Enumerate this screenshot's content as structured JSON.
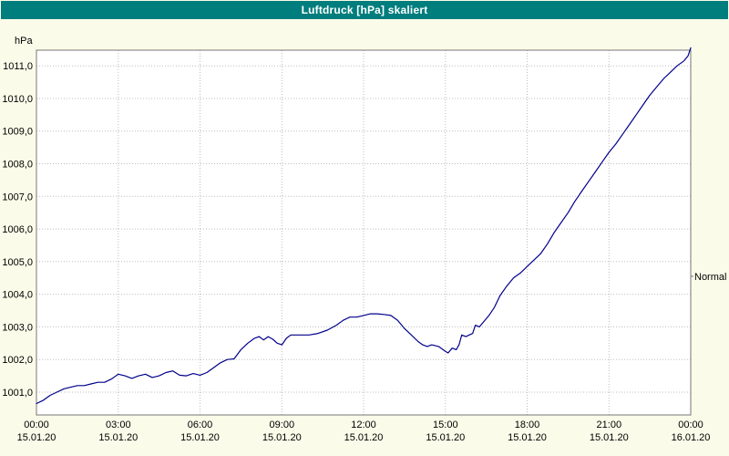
{
  "window": {
    "title": "Luftdruck [hPa] skaliert"
  },
  "colors": {
    "titlebar_bg": "#007d7d",
    "titlebar_text": "#ffffff",
    "page_bg": "#fbfbe9",
    "plot_bg": "#ffffff",
    "grid": "#bdbdbd",
    "axis": "#777777",
    "line": "#00008b",
    "text": "#000000"
  },
  "chart_data": {
    "type": "line",
    "title": "Luftdruck [hPa] skaliert",
    "ylabel": "hPa",
    "xlabel": "",
    "grid": true,
    "legend": "none",
    "ylim": [
      1000.3,
      1011.48
    ],
    "xlim": [
      0,
      24
    ],
    "yticks": [
      1001,
      1002,
      1003,
      1004,
      1005,
      1006,
      1007,
      1008,
      1009,
      1010,
      1011
    ],
    "ytick_labels": [
      "1001,0",
      "1002,0",
      "1003,0",
      "1004,0",
      "1005,0",
      "1006,0",
      "1007,0",
      "1008,0",
      "1009,0",
      "1010,0",
      "1011,0"
    ],
    "xticks": [
      0,
      3,
      6,
      9,
      12,
      15,
      18,
      21,
      24
    ],
    "xtick_labels": [
      {
        "time": "00:00",
        "date": "15.01.20"
      },
      {
        "time": "03:00",
        "date": "15.01.20"
      },
      {
        "time": "06:00",
        "date": "15.01.20"
      },
      {
        "time": "09:00",
        "date": "15.01.20"
      },
      {
        "time": "12:00",
        "date": "15.01.20"
      },
      {
        "time": "15:00",
        "date": "15.01.20"
      },
      {
        "time": "18:00",
        "date": "15.01.20"
      },
      {
        "time": "21:00",
        "date": "15.01.20"
      },
      {
        "time": "00:00",
        "date": "16.01.20"
      }
    ],
    "annotations": [
      {
        "text": "Normal",
        "y": 1004.55,
        "position": "right"
      }
    ],
    "series": [
      {
        "name": "Luftdruck",
        "color": "#00008b",
        "x": [
          0,
          0.25,
          0.5,
          0.75,
          1,
          1.25,
          1.5,
          1.75,
          2,
          2.25,
          2.5,
          2.75,
          3,
          3.25,
          3.5,
          3.75,
          4,
          4.25,
          4.5,
          4.75,
          5,
          5.25,
          5.5,
          5.75,
          6,
          6.25,
          6.5,
          6.75,
          7,
          7.25,
          7.5,
          7.75,
          8,
          8.17,
          8.33,
          8.5,
          8.67,
          8.83,
          9,
          9.17,
          9.33,
          9.67,
          10,
          10.33,
          10.67,
          11,
          11.25,
          11.5,
          11.75,
          12,
          12.25,
          12.5,
          12.75,
          13,
          13.25,
          13.5,
          13.75,
          14,
          14.17,
          14.33,
          14.5,
          14.75,
          15,
          15.1,
          15.25,
          15.4,
          15.5,
          15.6,
          15.75,
          16,
          16.1,
          16.25,
          16.4,
          16.6,
          16.8,
          17,
          17.25,
          17.5,
          17.75,
          18,
          18.25,
          18.5,
          18.75,
          19,
          19.25,
          19.5,
          19.75,
          20,
          20.25,
          20.5,
          20.75,
          21,
          21.25,
          21.5,
          21.75,
          22,
          22.25,
          22.5,
          22.75,
          23,
          23.25,
          23.5,
          23.75,
          23.9,
          24
        ],
        "y": [
          1000.65,
          1000.75,
          1000.9,
          1001.0,
          1001.1,
          1001.15,
          1001.2,
          1001.2,
          1001.25,
          1001.3,
          1001.3,
          1001.4,
          1001.55,
          1001.5,
          1001.42,
          1001.5,
          1001.55,
          1001.45,
          1001.5,
          1001.6,
          1001.65,
          1001.52,
          1001.5,
          1001.57,
          1001.52,
          1001.6,
          1001.75,
          1001.9,
          1002.0,
          1002.02,
          1002.3,
          1002.5,
          1002.65,
          1002.7,
          1002.6,
          1002.7,
          1002.62,
          1002.5,
          1002.45,
          1002.65,
          1002.75,
          1002.75,
          1002.75,
          1002.8,
          1002.9,
          1003.05,
          1003.2,
          1003.3,
          1003.3,
          1003.35,
          1003.4,
          1003.4,
          1003.38,
          1003.35,
          1003.2,
          1002.95,
          1002.75,
          1002.55,
          1002.45,
          1002.4,
          1002.45,
          1002.4,
          1002.25,
          1002.2,
          1002.35,
          1002.3,
          1002.45,
          1002.75,
          1002.7,
          1002.8,
          1003.05,
          1003.0,
          1003.15,
          1003.35,
          1003.6,
          1003.95,
          1004.25,
          1004.5,
          1004.65,
          1004.85,
          1005.05,
          1005.25,
          1005.55,
          1005.9,
          1006.2,
          1006.5,
          1006.85,
          1007.15,
          1007.45,
          1007.75,
          1008.05,
          1008.35,
          1008.6,
          1008.9,
          1009.2,
          1009.5,
          1009.8,
          1010.1,
          1010.35,
          1010.6,
          1010.8,
          1011.0,
          1011.15,
          1011.3,
          1011.55
        ]
      }
    ]
  }
}
